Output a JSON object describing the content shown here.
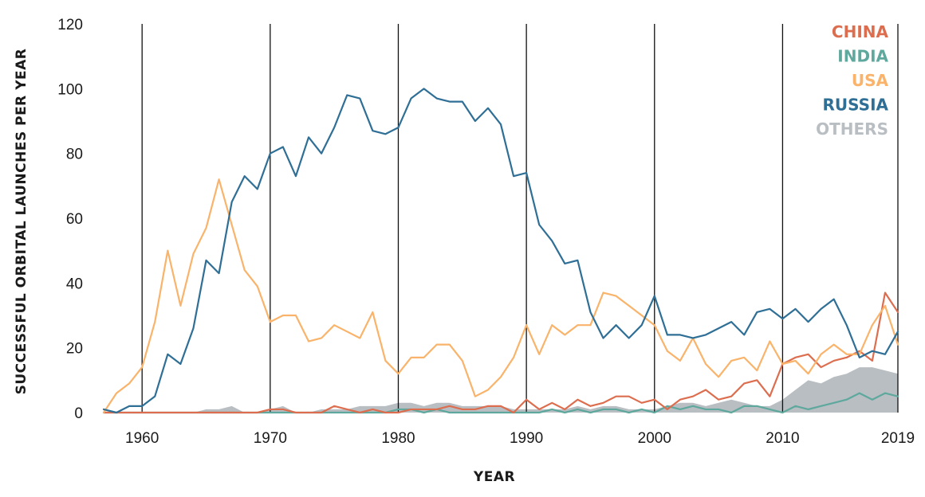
{
  "chart_data": {
    "type": "line",
    "xlabel": "YEAR",
    "ylabel": "SUCCESSFUL ORBITAL LAUNCHES PER YEAR",
    "xlim": [
      1957,
      2019
    ],
    "ylim": [
      0,
      120
    ],
    "y_ticks": [
      0,
      20,
      40,
      60,
      80,
      100,
      120
    ],
    "x_ticks": [
      1960,
      1970,
      1980,
      1990,
      2000,
      2010,
      2019
    ],
    "vertical_lines": [
      1960,
      1970,
      1980,
      1990,
      2000,
      2010,
      2019
    ],
    "legend_position": "top-right",
    "x": [
      1957,
      1958,
      1959,
      1960,
      1961,
      1962,
      1963,
      1964,
      1965,
      1966,
      1967,
      1968,
      1969,
      1970,
      1971,
      1972,
      1973,
      1974,
      1975,
      1976,
      1977,
      1978,
      1979,
      1980,
      1981,
      1982,
      1983,
      1984,
      1985,
      1986,
      1987,
      1988,
      1989,
      1990,
      1991,
      1992,
      1993,
      1994,
      1995,
      1996,
      1997,
      1998,
      1999,
      2000,
      2001,
      2002,
      2003,
      2004,
      2005,
      2006,
      2007,
      2008,
      2009,
      2010,
      2011,
      2012,
      2013,
      2014,
      2015,
      2016,
      2017,
      2018,
      2019
    ],
    "series": [
      {
        "name": "OTHERS",
        "render": "area",
        "color": "#b9bec3",
        "values": [
          0,
          0,
          0,
          0,
          0,
          0,
          0,
          0,
          1,
          1,
          2,
          0,
          0,
          1,
          2,
          0,
          0,
          1,
          1,
          1,
          2,
          2,
          2,
          3,
          3,
          2,
          3,
          3,
          2,
          2,
          2,
          2,
          1,
          1,
          1,
          1,
          1,
          2,
          1,
          2,
          2,
          1,
          1,
          1,
          2,
          3,
          3,
          2,
          3,
          4,
          3,
          2,
          2,
          4,
          7,
          10,
          9,
          11,
          12,
          14,
          14,
          13,
          12
        ]
      },
      {
        "name": "INDIA",
        "render": "line",
        "color": "#5ea89d",
        "values": [
          0,
          0,
          0,
          0,
          0,
          0,
          0,
          0,
          0,
          0,
          0,
          0,
          0,
          0,
          0,
          0,
          0,
          0,
          0,
          0,
          0,
          0,
          0,
          1,
          1,
          0,
          1,
          0,
          0,
          0,
          0,
          0,
          0,
          0,
          0,
          1,
          0,
          1,
          0,
          1,
          1,
          0,
          1,
          0,
          2,
          1,
          2,
          1,
          1,
          0,
          2,
          2,
          1,
          0,
          2,
          1,
          2,
          3,
          4,
          6,
          4,
          6,
          5
        ]
      },
      {
        "name": "CHINA",
        "render": "line",
        "color": "#dc6e4f",
        "values": [
          0,
          0,
          0,
          0,
          0,
          0,
          0,
          0,
          0,
          0,
          0,
          0,
          0,
          1,
          1,
          0,
          0,
          0,
          2,
          1,
          0,
          1,
          0,
          0,
          1,
          1,
          1,
          2,
          1,
          1,
          2,
          2,
          0,
          4,
          1,
          3,
          1,
          4,
          2,
          3,
          5,
          5,
          3,
          4,
          1,
          4,
          5,
          7,
          4,
          5,
          9,
          10,
          5,
          15,
          17,
          18,
          14,
          16,
          17,
          19,
          16,
          37,
          31
        ]
      },
      {
        "name": "USA",
        "render": "line",
        "color": "#f9b36a",
        "values": [
          0,
          6,
          9,
          14,
          28,
          50,
          33,
          49,
          57,
          72,
          58,
          44,
          39,
          28,
          30,
          30,
          22,
          23,
          27,
          25,
          23,
          31,
          16,
          12,
          17,
          17,
          21,
          21,
          16,
          5,
          7,
          11,
          17,
          27,
          18,
          27,
          24,
          27,
          27,
          37,
          36,
          33,
          30,
          27,
          19,
          16,
          23,
          15,
          11,
          16,
          17,
          13,
          22,
          15,
          16,
          12,
          18,
          21,
          18,
          18,
          27,
          33,
          21
        ]
      },
      {
        "name": "RUSSIA",
        "render": "line",
        "color": "#2f6f96",
        "values": [
          1,
          0,
          2,
          2,
          5,
          18,
          15,
          26,
          47,
          43,
          65,
          73,
          69,
          80,
          82,
          73,
          85,
          80,
          88,
          98,
          97,
          87,
          86,
          88,
          97,
          100,
          97,
          96,
          96,
          90,
          94,
          89,
          73,
          74,
          58,
          53,
          46,
          47,
          31,
          23,
          27,
          23,
          27,
          36,
          24,
          24,
          23,
          24,
          26,
          28,
          24,
          31,
          32,
          29,
          32,
          28,
          32,
          35,
          27,
          17,
          19,
          18,
          25
        ]
      }
    ]
  }
}
